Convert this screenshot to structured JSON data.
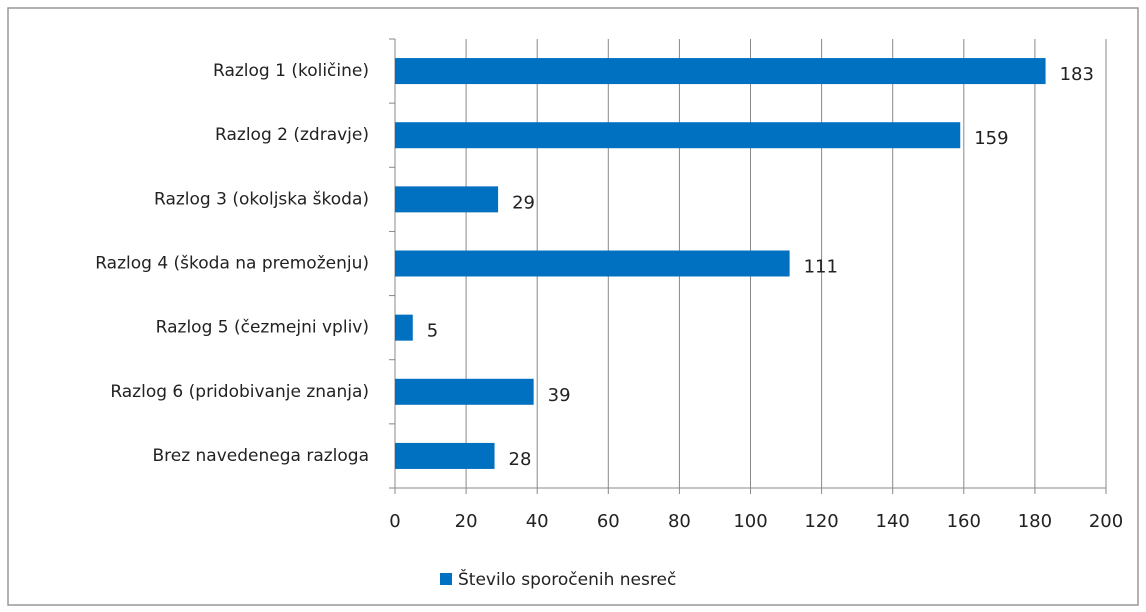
{
  "chart_data": {
    "type": "bar",
    "orientation": "horizontal",
    "categories": [
      "Razlog 1 (količine)",
      "Razlog 2 (zdravje)",
      "Razlog 3 (okoljska škoda)",
      "Razlog 4 (škoda na premoženju)",
      "Razlog 5 (čezmejni vpliv)",
      "Razlog 6 (pridobivanje znanja)",
      "Brez navedenega razloga"
    ],
    "series": [
      {
        "name": "Število sporočenih nesreč",
        "color": "#0070c0",
        "values": [
          183,
          159,
          29,
          111,
          5,
          39,
          28
        ]
      }
    ],
    "xlim": [
      0,
      200
    ],
    "xticks": [
      0,
      20,
      40,
      60,
      80,
      100,
      120,
      140,
      160,
      180,
      200
    ],
    "grid": true,
    "legend": "bottom"
  }
}
